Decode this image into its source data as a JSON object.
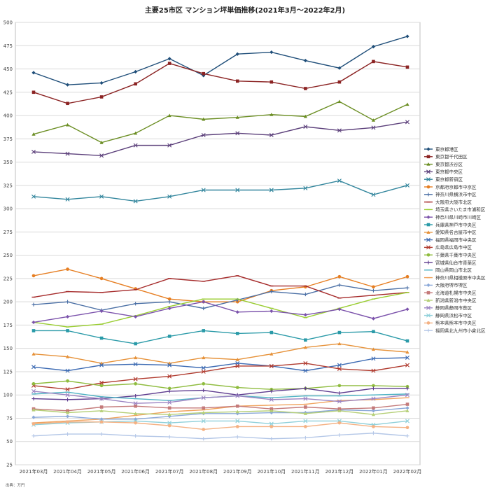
{
  "chart_data": {
    "type": "line",
    "title": "主要25市区 マンション坪単価推移(2021年3月～2022年2月)",
    "source": "出典：万円",
    "xlabel": "",
    "ylabel": "",
    "ylim": [
      25,
      500
    ],
    "yticks": [
      25,
      50,
      75,
      100,
      125,
      150,
      175,
      200,
      225,
      250,
      275,
      300,
      325,
      350,
      375,
      400,
      425,
      450,
      475,
      500
    ],
    "grid": true,
    "legend_position": "right",
    "categories": [
      "2021年03月",
      "2021年04月",
      "2021年05月",
      "2021年06月",
      "2021年07月",
      "2021年08月",
      "2021年09月",
      "2021年10月",
      "2021年11月",
      "2021年12月",
      "2022年01月",
      "2022年02月"
    ],
    "series": [
      {
        "name": "東京都港区",
        "color": "#1f4e79",
        "marker": "diamond",
        "values": [
          446,
          433,
          435,
          447,
          461,
          443,
          466,
          468,
          459,
          451,
          474,
          485
        ]
      },
      {
        "name": "東京都千代田区",
        "color": "#8b2323",
        "marker": "square",
        "values": [
          425,
          413,
          420,
          434,
          456,
          445,
          437,
          436,
          429,
          436,
          458,
          452
        ]
      },
      {
        "name": "東京都渋谷区",
        "color": "#6b8e23",
        "marker": "triangle",
        "values": [
          380,
          390,
          371,
          381,
          400,
          396,
          398,
          401,
          399,
          415,
          395,
          412
        ]
      },
      {
        "name": "東京都中央区",
        "color": "#5b3f7a",
        "marker": "x",
        "values": [
          361,
          359,
          357,
          368,
          368,
          379,
          381,
          379,
          388,
          384,
          387,
          393
        ]
      },
      {
        "name": "東京都新宿区",
        "color": "#31859c",
        "marker": "x",
        "values": [
          313,
          310,
          313,
          308,
          313,
          320,
          320,
          320,
          322,
          330,
          315,
          325
        ]
      },
      {
        "name": "京都府京都市中京区",
        "color": "#e67e22",
        "marker": "circle",
        "values": [
          228,
          235,
          225,
          214,
          203,
          200,
          200,
          212,
          216,
          227,
          216,
          227
        ]
      },
      {
        "name": "神奈川県横浜市中区",
        "color": "#4a6fa5",
        "marker": "plus",
        "values": [
          197,
          200,
          191,
          198,
          200,
          193,
          202,
          211,
          208,
          218,
          212,
          215
        ]
      },
      {
        "name": "大阪府大阪市北区",
        "color": "#a52a2a",
        "marker": "line",
        "values": [
          205,
          211,
          210,
          213,
          225,
          222,
          228,
          217,
          217,
          204,
          207,
          210
        ]
      },
      {
        "name": "埼玉県さいたま市浦和区",
        "color": "#9acd32",
        "marker": "line",
        "values": [
          178,
          173,
          176,
          185,
          195,
          203,
          203,
          193,
          183,
          193,
          203,
          210
        ]
      },
      {
        "name": "神奈川県川崎市川崎区",
        "color": "#7b52ab",
        "marker": "diamond",
        "values": [
          178,
          184,
          190,
          184,
          193,
          200,
          189,
          190,
          186,
          192,
          182,
          192
        ]
      },
      {
        "name": "兵庫県神戸市中央区",
        "color": "#2a9aa8",
        "marker": "square",
        "values": [
          169,
          169,
          161,
          155,
          163,
          169,
          166,
          167,
          159,
          167,
          168,
          158
        ]
      },
      {
        "name": "愛知県名古屋市中区",
        "color": "#e69138",
        "marker": "triangle",
        "values": [
          144,
          141,
          134,
          140,
          134,
          140,
          138,
          144,
          151,
          155,
          149,
          146
        ]
      },
      {
        "name": "福岡県福岡市中央区",
        "color": "#3d6bb3",
        "marker": "x",
        "values": [
          130,
          126,
          132,
          133,
          132,
          129,
          134,
          131,
          126,
          132,
          139,
          140
        ]
      },
      {
        "name": "広島県広島市中区",
        "color": "#b03a2e",
        "marker": "x",
        "values": [
          110,
          106,
          113,
          117,
          120,
          125,
          131,
          131,
          134,
          128,
          126,
          132
        ]
      },
      {
        "name": "千葉県千葉市中央区",
        "color": "#8fbc3f",
        "marker": "circle",
        "values": [
          112,
          115,
          110,
          112,
          107,
          112,
          108,
          106,
          107,
          110,
          110,
          109
        ]
      },
      {
        "name": "宮城県仙台市青葉区",
        "color": "#5e3c8f",
        "marker": "plus",
        "values": [
          96,
          95,
          96,
          99,
          104,
          105,
          100,
          104,
          107,
          102,
          107,
          107
        ]
      },
      {
        "name": "岡山県岡山市北区",
        "color": "#4fb3c4",
        "marker": "line",
        "values": [
          101,
          103,
          98,
          96,
          94,
          97,
          99,
          97,
          99,
          99,
          100,
          101
        ]
      },
      {
        "name": "神奈川県相模原市中央区",
        "color": "#f0a35e",
        "marker": "line",
        "values": [
          70,
          72,
          74,
          78,
          82,
          84,
          88,
          89,
          90,
          94,
          95,
          97
        ]
      },
      {
        "name": "大阪府堺市堺区",
        "color": "#8aa8d8",
        "marker": "diamond",
        "values": [
          76,
          77,
          74,
          74,
          77,
          80,
          80,
          81,
          81,
          84,
          83,
          86
        ]
      },
      {
        "name": "北海道札幌市中央区",
        "color": "#c47a7a",
        "marker": "square",
        "values": [
          85,
          83,
          87,
          88,
          86,
          86,
          88,
          85,
          87,
          85,
          86,
          90
        ]
      },
      {
        "name": "新潟県新潟市中央区",
        "color": "#b5cf77",
        "marker": "triangle",
        "values": [
          84,
          81,
          83,
          80,
          79,
          81,
          82,
          83,
          80,
          83,
          79,
          83
        ]
      },
      {
        "name": "静岡県静岡市葵区",
        "color": "#9b84c2",
        "marker": "x",
        "values": [
          104,
          100,
          96,
          91,
          92,
          97,
          99,
          95,
          96,
          93,
          96,
          100
        ]
      },
      {
        "name": "静岡県浜松市中区",
        "color": "#8fd0da",
        "marker": "x",
        "values": [
          68,
          70,
          71,
          72,
          70,
          72,
          72,
          69,
          72,
          72,
          68,
          72
        ]
      },
      {
        "name": "熊本県熊本市中央区",
        "color": "#f4b183",
        "marker": "circle",
        "values": [
          69,
          71,
          71,
          70,
          67,
          63,
          66,
          66,
          66,
          70,
          66,
          65
        ]
      },
      {
        "name": "福岡県北九州市小倉北区",
        "color": "#b4c7e7",
        "marker": "plus",
        "values": [
          56,
          58,
          58,
          56,
          55,
          53,
          55,
          53,
          54,
          57,
          59,
          56
        ]
      }
    ]
  }
}
